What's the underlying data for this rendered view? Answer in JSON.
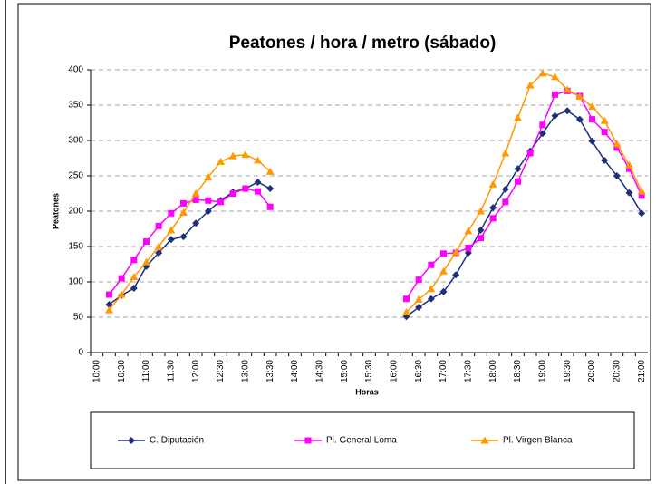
{
  "chart_data": {
    "type": "line",
    "title": "Peatones / hora / metro (sábado)",
    "x_label": "Horas",
    "y_label": "Peatones",
    "categories": [
      "10:00",
      null,
      "10:30",
      null,
      "11:00",
      null,
      "11:30",
      null,
      "12:00",
      null,
      "12:30",
      null,
      "13:00",
      null,
      "13:30",
      null,
      "14:00",
      null,
      "14:30",
      null,
      "15:00",
      null,
      "15:30",
      null,
      "16:00",
      null,
      "16:30",
      null,
      "17:00",
      null,
      "17:30",
      null,
      "18:00",
      null,
      "18:30",
      null,
      "19:00",
      null,
      "19:30",
      null,
      "20:00",
      null,
      "20:30",
      null,
      "21:00"
    ],
    "series": [
      {
        "name": "C. Diputación",
        "color": "#1f2f7a",
        "marker": "diamond",
        "values": [
          null,
          68,
          81,
          91,
          122,
          141,
          160,
          164,
          183,
          200,
          215,
          227,
          232,
          241,
          232,
          null,
          null,
          null,
          null,
          null,
          null,
          null,
          null,
          null,
          null,
          51,
          64,
          76,
          86,
          110,
          141,
          173,
          205,
          231,
          260,
          285,
          310,
          335,
          342,
          330,
          299,
          272,
          250,
          226,
          197
        ]
      },
      {
        "name": "Pl. General Loma",
        "color": "#ff00ff",
        "marker": "square",
        "values": [
          null,
          82,
          105,
          131,
          157,
          179,
          197,
          211,
          216,
          215,
          213,
          225,
          232,
          228,
          206,
          null,
          null,
          null,
          null,
          null,
          null,
          null,
          null,
          null,
          null,
          76,
          103,
          124,
          140,
          141,
          148,
          162,
          190,
          213,
          242,
          282,
          322,
          365,
          370,
          363,
          330,
          312,
          290,
          260,
          222
        ]
      },
      {
        "name": "Pl. Virgen Blanca",
        "color": "#ff9900",
        "marker": "triangle",
        "values": [
          null,
          60,
          82,
          107,
          128,
          150,
          173,
          198,
          225,
          248,
          270,
          278,
          280,
          272,
          256,
          null,
          null,
          null,
          null,
          null,
          null,
          null,
          null,
          null,
          null,
          57,
          75,
          90,
          115,
          142,
          172,
          200,
          238,
          282,
          332,
          378,
          395,
          390,
          372,
          362,
          348,
          328,
          295,
          265,
          228
        ]
      }
    ],
    "ylim": [
      0,
      400
    ],
    "yticks": [
      0,
      50,
      100,
      150,
      200,
      250,
      300,
      350,
      400
    ],
    "grid": true
  }
}
